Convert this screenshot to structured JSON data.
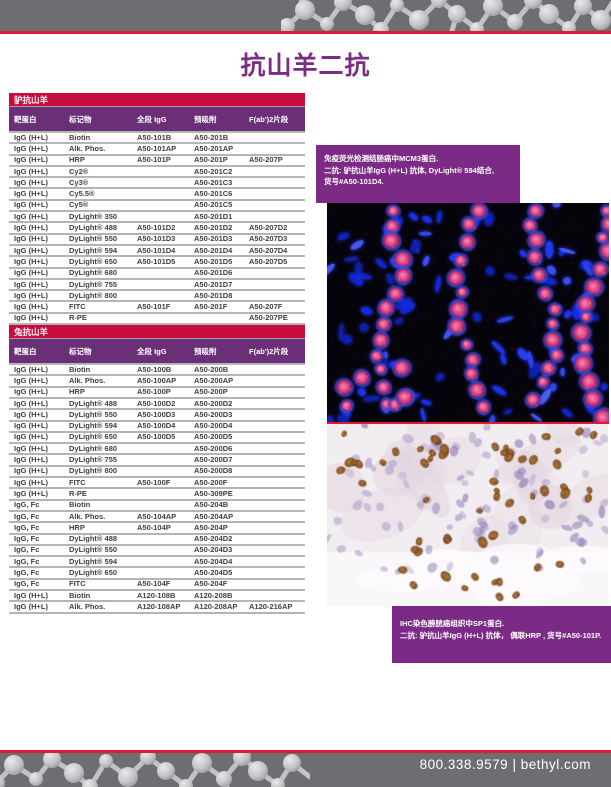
{
  "page": {
    "title": "抗山羊二抗"
  },
  "footer": {
    "phone": "800.338.9579",
    "separator": "|",
    "website": "bethyl.com"
  },
  "colors": {
    "accent_red": "#c60d3d",
    "rule_red": "#e11a32",
    "column_header_purple": "#6a2f76",
    "caption_purple": "#7b2a85",
    "title_purple": "#7b2c84",
    "bar_gray": "#6d6e71",
    "row_text": "#3f3f41"
  },
  "tables": [
    {
      "section_title": "驴抗山羊",
      "columns": [
        "靶蛋白",
        "标记物",
        "全段 IgG",
        "预吸附",
        "F(ab')2片段"
      ],
      "rows": [
        [
          "IgG (H+L)",
          "Biotin",
          "A50-101B",
          "A50-201B",
          ""
        ],
        [
          "IgG (H+L)",
          "Alk. Phos.",
          "A50-101AP",
          "A50-201AP",
          ""
        ],
        [
          "IgG (H+L)",
          "HRP",
          "A50-101P",
          "A50-201P",
          "A50-207P"
        ],
        [
          "IgG (H+L)",
          "Cy2®",
          "",
          "A50-201C2",
          ""
        ],
        [
          "IgG (H+L)",
          "Cy3®",
          "",
          "A50-201C3",
          ""
        ],
        [
          "IgG (H+L)",
          "Cy5.5®",
          "",
          "A50-201C6",
          ""
        ],
        [
          "IgG (H+L)",
          "Cy5®",
          "",
          "A50-201C5",
          ""
        ],
        [
          "IgG (H+L)",
          "DyLight® 350",
          "",
          "A50-201D1",
          ""
        ],
        [
          "IgG (H+L)",
          "DyLight® 488",
          "A50-101D2",
          "A50-201D2",
          "A50-207D2"
        ],
        [
          "IgG (H+L)",
          "DyLight® 550",
          "A50-101D3",
          "A50-201D3",
          "A50-207D3"
        ],
        [
          "IgG (H+L)",
          "DyLight® 594",
          "A50-101D4",
          "A50-201D4",
          "A50-207D4"
        ],
        [
          "IgG (H+L)",
          "DyLight® 650",
          "A50-101D5",
          "A50-201D5",
          "A50-207D5"
        ],
        [
          "IgG (H+L)",
          "DyLight® 680",
          "",
          "A50-201D6",
          ""
        ],
        [
          "IgG (H+L)",
          "DyLight® 755",
          "",
          "A50-201D7",
          ""
        ],
        [
          "IgG (H+L)",
          "DyLight® 800",
          "",
          "A50-201D8",
          ""
        ],
        [
          "IgG (H+L)",
          "FITC",
          "A50-101F",
          "A50-201F",
          "A50-207F"
        ],
        [
          "IgG (H+L)",
          "R-PE",
          "",
          "",
          "A50-207PE"
        ]
      ]
    },
    {
      "section_title": "兔抗山羊",
      "columns": [
        "靶蛋白",
        "标记物",
        "全段 IgG",
        "预吸附",
        "F(ab')2片段"
      ],
      "rows": [
        [
          "IgG (H+L)",
          "Biotin",
          "A50-100B",
          "A50-200B",
          ""
        ],
        [
          "IgG (H+L)",
          "Alk. Phos.",
          "A50-100AP",
          "A50-200AP",
          ""
        ],
        [
          "IgG (H+L)",
          "HRP",
          "A50-100P",
          "A50-200P",
          ""
        ],
        [
          "IgG (H+L)",
          "DyLight® 488",
          "A50-100D2",
          "A50-200D2",
          ""
        ],
        [
          "IgG (H+L)",
          "DyLight® 550",
          "A50-100D3",
          "A50-200D3",
          ""
        ],
        [
          "IgG (H+L)",
          "DyLight® 594",
          "A50-100D4",
          "A50-200D4",
          ""
        ],
        [
          "IgG (H+L)",
          "DyLight® 650",
          "A50-100D5",
          "A50-200D5",
          ""
        ],
        [
          "IgG (H+L)",
          "DyLight® 680",
          "",
          "A50-200D6",
          ""
        ],
        [
          "IgG (H+L)",
          "DyLight® 755",
          "",
          "A50-200D7",
          ""
        ],
        [
          "IgG (H+L)",
          "DyLight® 800",
          "",
          "A50-200D8",
          ""
        ],
        [
          "IgG (H+L)",
          "FITC",
          "A50-100F",
          "A50-200F",
          ""
        ],
        [
          "IgG (H+L)",
          "R-PE",
          "",
          "A50-309PE",
          ""
        ],
        [
          "IgG, Fc",
          "Biotin",
          "",
          "A50-204B",
          ""
        ],
        [
          "IgG, Fc",
          "Alk. Phos.",
          "A50-104AP",
          "A50-204AP",
          ""
        ],
        [
          "IgG, Fc",
          "HRP",
          "A50-104P",
          "A50-204P",
          ""
        ],
        [
          "IgG, Fc",
          "DyLight® 488",
          "",
          "A50-204D2",
          ""
        ],
        [
          "IgG, Fc",
          "DyLight® 550",
          "",
          "A50-204D3",
          ""
        ],
        [
          "IgG, Fc",
          "DyLight® 594",
          "",
          "A50-204D4",
          ""
        ],
        [
          "IgG, Fc",
          "DyLight® 650",
          "",
          "A50-204D5",
          ""
        ],
        [
          "IgG, Fc",
          "FITC",
          "A50-104F",
          "A50-204F",
          ""
        ],
        [
          "IgG (H+L)",
          "Biotin",
          "A120-108B",
          "A120-208B",
          ""
        ],
        [
          "IgG (H+L)",
          "Alk. Phos.",
          "A120-108AP",
          "A120-208AP",
          "A120-216AP"
        ]
      ]
    }
  ],
  "figures": {
    "if_caption": {
      "line1": "免疫荧光检测结肠癌中MCM3蛋白.",
      "line2": "二抗: 驴抗山羊IgG (H+L) 抗体, DyLight® 594结合,",
      "line3": "货号#A50-101D4."
    },
    "ihc_caption": {
      "line1": "IHC染色膀胱癌组织中SP1蛋白.",
      "line2": "二抗: 驴抗山羊IgG (H+L) 抗体， 偶联HRP , 货号#A50-101P."
    }
  }
}
